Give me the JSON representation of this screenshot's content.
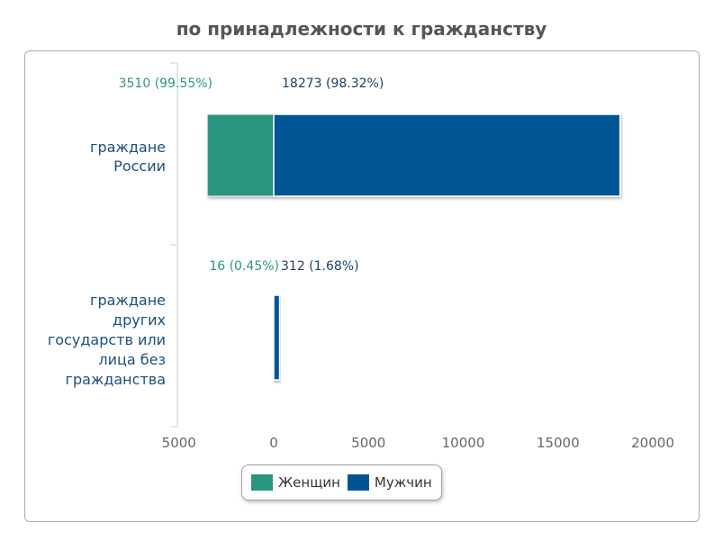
{
  "title": "по принадлежности к гражданству",
  "colors": {
    "women": "#2a9680",
    "men": "#005494",
    "women_label": "#2a9680",
    "men_label": "#1c3f62",
    "axis_text": "#666666",
    "category_text": "#1c4f7c"
  },
  "legend": [
    {
      "name": "Женщин",
      "color": "#2a9680"
    },
    {
      "name": "Мужчин",
      "color": "#005494"
    }
  ],
  "chart_data": {
    "type": "bar",
    "orientation": "horizontal",
    "stacked": "diverging",
    "title": "по принадлежности к гражданству",
    "categories": [
      [
        "граждане",
        "России"
      ],
      [
        "граждане",
        "других",
        "государств или",
        "лица без",
        "гражданства"
      ]
    ],
    "series": [
      {
        "name": "Женщин",
        "values": [
          3510,
          16
        ],
        "labels": [
          "3510 (99.55%)",
          "16 (0.45%)"
        ]
      },
      {
        "name": "Мужчин",
        "values": [
          18273,
          312
        ],
        "labels": [
          "18273 (98.32%)",
          "312 (1.68%)"
        ]
      }
    ],
    "xlim": [
      -5000,
      20000
    ],
    "xticks": [
      -5000,
      0,
      5000,
      10000,
      15000,
      20000
    ],
    "xtick_labels": [
      "5000",
      "0",
      "5000",
      "10000",
      "15000",
      "20000"
    ],
    "legend_position": "bottom-center",
    "grid": false
  }
}
